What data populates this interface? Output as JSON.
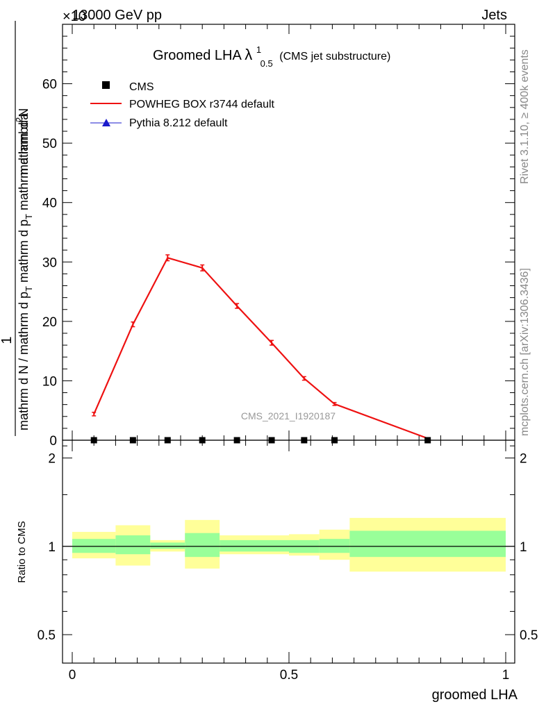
{
  "header": {
    "energy_label": "13000 GeV pp",
    "exponent_label": "×10",
    "process_label": "Jets"
  },
  "side_labels": {
    "rivet": "Rivet 3.1.10, ≥ 400k events",
    "mcplots": "mcplots.cern.ch [arXiv:1306.3436]"
  },
  "chart_data": [
    {
      "type": "line",
      "title": "Groomed LHA",
      "title_symbol": "λ",
      "title_superscript": "1",
      "title_subscript": "0.5",
      "title_suffix": "(CMS jet substructure)",
      "watermark": "CMS_2021_I1920187",
      "ylabel_top": "1",
      "ylabel_bottom": "mathrm d N / mathrm d p_T mathrm d p_T mathrm d lambda",
      "ylabel_num": "mathrm d^{2}N",
      "ylabel_den": "mathrm d N / mathrm d p",
      "ylabel_den_line2": "mathrm d p",
      "ylabel_den_line3": "mathrm d lambda",
      "ylabel_parts": [
        "mathrm d N / mathrm d p",
        "T",
        "mathrm d p",
        "T",
        "mathrm d lambda"
      ],
      "ylabel_num_parts": [
        "mathrm d",
        "2",
        "N"
      ],
      "xlim": [
        0,
        1
      ],
      "ylim": [
        0,
        70
      ],
      "yticks": [
        0,
        10,
        20,
        30,
        40,
        50,
        60
      ],
      "ytick_labels": [
        "0",
        "10",
        "20",
        "30",
        "40",
        "50",
        "60"
      ],
      "legend": [
        {
          "name": "CMS",
          "marker": "square",
          "color": "#000000"
        },
        {
          "name": "POWHEG BOX r3744 default",
          "marker": "line",
          "color": "#ee1111"
        },
        {
          "name": "Pythia 8.212 default",
          "marker": "triangle",
          "color": "#1a1acc"
        }
      ],
      "series": [
        {
          "name": "CMS",
          "color": "#000000",
          "x": [
            0.05,
            0.14,
            0.22,
            0.3,
            0.38,
            0.46,
            0.535,
            0.605,
            0.82
          ],
          "y": [
            0,
            0,
            0,
            0,
            0,
            0,
            0,
            0,
            0
          ]
        },
        {
          "name": "POWHEG BOX r3744 default",
          "color": "#ee1111",
          "x": [
            0.05,
            0.14,
            0.22,
            0.3,
            0.38,
            0.46,
            0.535,
            0.605,
            0.82
          ],
          "y": [
            4.4,
            19.5,
            30.7,
            29.0,
            22.6,
            16.4,
            10.4,
            6.1,
            0.3
          ],
          "yerr": [
            0.3,
            0.4,
            0.5,
            0.5,
            0.4,
            0.4,
            0.3,
            0.25,
            0.1
          ]
        }
      ]
    },
    {
      "type": "bar",
      "title": "ratio",
      "ylabel": "Ratio to CMS",
      "xlabel": "groomed LHA",
      "xlim": [
        0,
        1
      ],
      "ylim": [
        0.4,
        2.3
      ],
      "yscale": "log",
      "yticks": [
        0.5,
        1,
        2
      ],
      "ytick_labels": [
        "0.5",
        "1",
        "2"
      ],
      "xticks": [
        0,
        0.5,
        1
      ],
      "xtick_labels": [
        "0",
        "0.5",
        "1"
      ],
      "bands": [
        {
          "x0": 0.0,
          "x1": 0.1,
          "green": [
            0.95,
            1.06
          ],
          "yellow": [
            0.91,
            1.12
          ]
        },
        {
          "x0": 0.1,
          "x1": 0.18,
          "green": [
            0.94,
            1.09
          ],
          "yellow": [
            0.86,
            1.18
          ]
        },
        {
          "x0": 0.18,
          "x1": 0.26,
          "green": [
            0.98,
            1.03
          ],
          "yellow": [
            0.96,
            1.05
          ]
        },
        {
          "x0": 0.26,
          "x1": 0.34,
          "green": [
            0.92,
            1.11
          ],
          "yellow": [
            0.84,
            1.23
          ]
        },
        {
          "x0": 0.34,
          "x1": 0.5,
          "green": [
            0.96,
            1.05
          ],
          "yellow": [
            0.94,
            1.09
          ]
        },
        {
          "x0": 0.5,
          "x1": 0.57,
          "green": [
            0.95,
            1.05
          ],
          "yellow": [
            0.93,
            1.1
          ]
        },
        {
          "x0": 0.57,
          "x1": 0.64,
          "green": [
            0.95,
            1.06
          ],
          "yellow": [
            0.9,
            1.14
          ]
        },
        {
          "x0": 0.64,
          "x1": 1.0,
          "green": [
            0.92,
            1.13
          ],
          "yellow": [
            0.82,
            1.25
          ]
        }
      ]
    }
  ]
}
